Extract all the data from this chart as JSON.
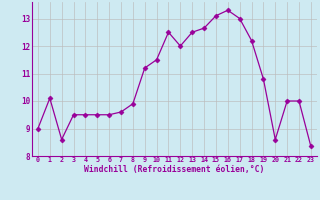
{
  "x": [
    0,
    1,
    2,
    3,
    4,
    5,
    6,
    7,
    8,
    9,
    10,
    11,
    12,
    13,
    14,
    15,
    16,
    17,
    18,
    19,
    20,
    21,
    22,
    23
  ],
  "y": [
    9.0,
    10.1,
    8.6,
    9.5,
    9.5,
    9.5,
    9.5,
    9.6,
    9.9,
    11.2,
    11.5,
    12.5,
    12.0,
    12.5,
    12.65,
    13.1,
    13.3,
    13.0,
    12.2,
    10.8,
    8.6,
    10.0,
    10.0,
    8.35
  ],
  "line_color": "#990099",
  "marker": "D",
  "marker_size": 2.5,
  "bg_color": "#ceeaf2",
  "grid_color": "#bbbbbb",
  "xlabel": "Windchill (Refroidissement éolien,°C)",
  "xlabel_color": "#990099",
  "tick_color": "#990099",
  "ylim": [
    8,
    13.6
  ],
  "xlim": [
    -0.5,
    23.5
  ],
  "yticks": [
    8,
    9,
    10,
    11,
    12,
    13
  ],
  "xticks": [
    0,
    1,
    2,
    3,
    4,
    5,
    6,
    7,
    8,
    9,
    10,
    11,
    12,
    13,
    14,
    15,
    16,
    17,
    18,
    19,
    20,
    21,
    22,
    23
  ]
}
